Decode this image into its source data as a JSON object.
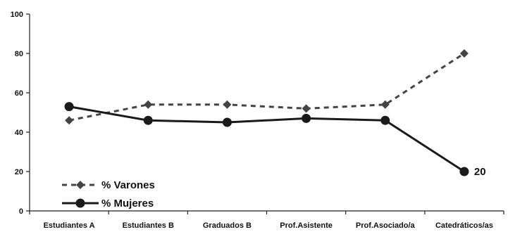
{
  "chart_data": {
    "type": "line",
    "categories": [
      "Estudiantes A",
      "Estudiantes B",
      "Graduados B",
      "Prof.Asistente",
      "Prof.Asociado/a",
      "Catedráticos/as"
    ],
    "ylim": [
      0,
      100
    ],
    "yticks": [
      0,
      20,
      40,
      60,
      80,
      100
    ],
    "grid": false,
    "legend_position": "bottom-left",
    "series": [
      {
        "name": "% Varones",
        "values": [
          46,
          54,
          54,
          52,
          54,
          80
        ],
        "color": "#444444",
        "line_style": "dashed",
        "marker": "diamond"
      },
      {
        "name": "% Mujeres",
        "values": [
          53,
          46,
          45,
          47,
          46,
          20
        ],
        "color": "#1a1a1a",
        "line_style": "solid",
        "marker": "circle"
      }
    ],
    "annotations": [
      {
        "series": 1,
        "point_index": 5,
        "text": "20"
      }
    ]
  }
}
